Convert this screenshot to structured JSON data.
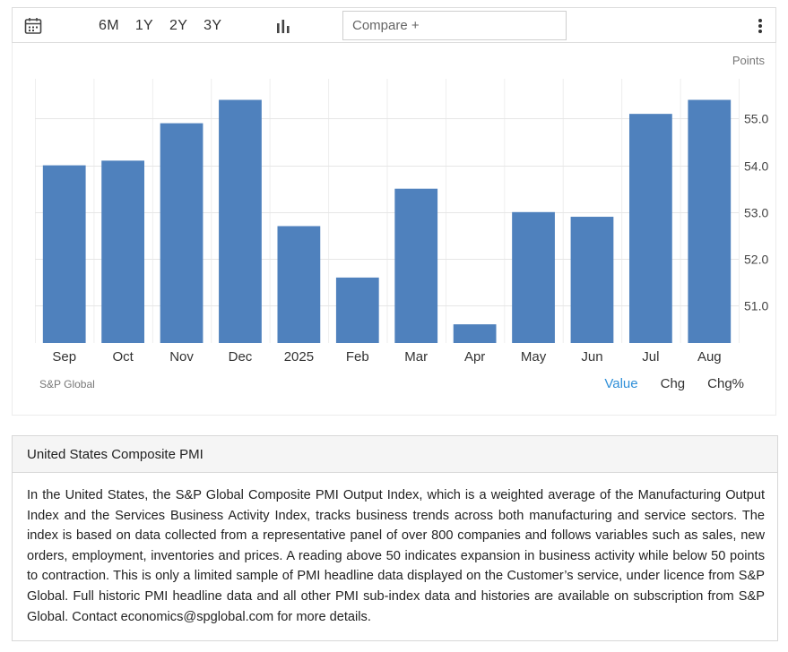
{
  "toolbar": {
    "calendar_icon": "calendar-icon",
    "ranges": [
      "6M",
      "1Y",
      "2Y",
      "3Y"
    ],
    "chart_type_icon": "bar-chart-icon",
    "compare_placeholder": "Compare +",
    "menu_icon": "more-vertical-icon"
  },
  "chart": {
    "unit_label": "Points",
    "source": "S&P Global",
    "view_tabs": [
      {
        "label": "Value",
        "active": true
      },
      {
        "label": "Chg",
        "active": false
      },
      {
        "label": "Chg%",
        "active": false
      }
    ]
  },
  "chart_data": {
    "type": "bar",
    "categories": [
      "Sep",
      "Oct",
      "Nov",
      "Dec",
      "2025",
      "Feb",
      "Mar",
      "Apr",
      "May",
      "Jun",
      "Jul",
      "Aug"
    ],
    "values": [
      54.0,
      54.1,
      54.9,
      55.4,
      52.7,
      51.6,
      53.5,
      50.6,
      53.0,
      52.9,
      55.1,
      55.4
    ],
    "ylabel": "Points",
    "ylim": [
      50.2,
      55.85
    ],
    "yticks": [
      51.0,
      52.0,
      53.0,
      54.0,
      55.0
    ],
    "bar_color": "#4f81bd",
    "grid": true,
    "legend": "none"
  },
  "description": {
    "title": "United States Composite PMI",
    "text": "In the United States, the S&P Global Composite PMI Output Index, which is a weighted average of the Manufacturing Output Index and the Services Business Activity Index, tracks business trends across both manufacturing and service sectors. The index is based on data collected from a representative panel of over 800 companies and follows variables such as sales, new orders, employment, inventories and prices. A reading above 50 indicates expansion in business activity while below 50 points to contraction. This is only a limited sample of PMI headline data displayed on the Customer’s service, under licence from S&P Global. Full historic PMI headline data and all other PMI sub-index data and histories are available on subscription from S&P Global. Contact economics@spglobal.com for more details."
  }
}
